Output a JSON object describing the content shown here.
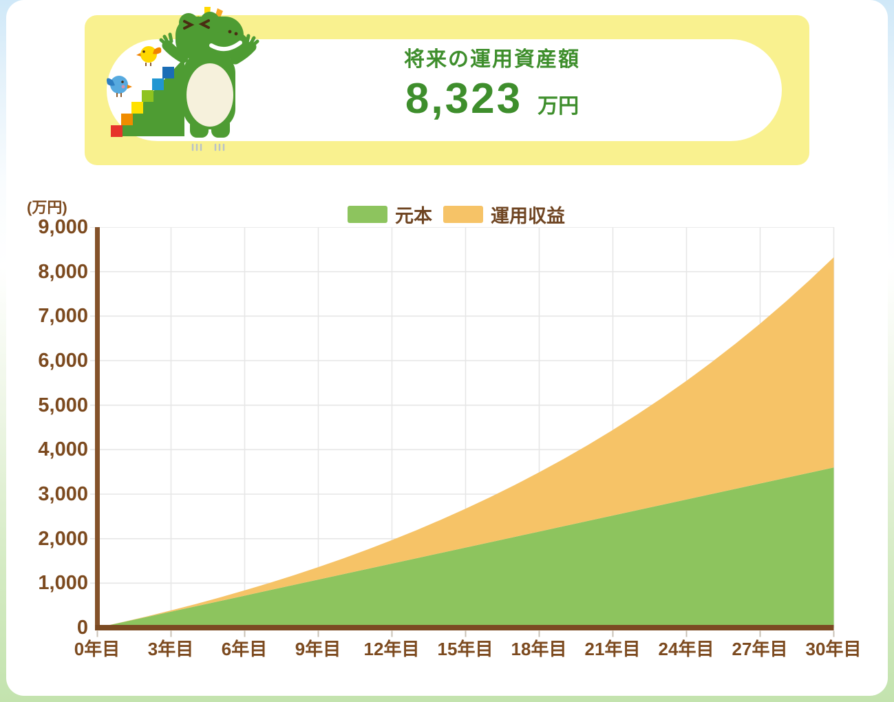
{
  "header": {
    "title": "将来の運用資産額",
    "value": "8,323",
    "unit": "万円",
    "mascot": "crocodile-climbing-rainbow-stairs-with-chick-and-bluebird"
  },
  "chart": {
    "axis_unit": "(万円)",
    "legend": [
      {
        "label": "元本",
        "color": "#8dc45e"
      },
      {
        "label": "運用収益",
        "color": "#f6c367"
      }
    ],
    "y_tick_labels": [
      "9,000",
      "8,000",
      "7,000",
      "6,000",
      "5,000",
      "4,000",
      "3,000",
      "2,000",
      "1,000",
      "0"
    ],
    "x_tick_labels": [
      "0年目",
      "3年目",
      "6年目",
      "9年目",
      "12年目",
      "15年目",
      "18年目",
      "21年目",
      "24年目",
      "27年目",
      "30年目"
    ]
  },
  "chart_data": {
    "type": "area",
    "stacked": true,
    "title": "将来の運用資産額 8,323万円",
    "xlabel": "年目",
    "ylabel": "万円",
    "ylim": [
      0,
      9000
    ],
    "xlim_years": [
      0,
      30
    ],
    "y_gridline_step": 1000,
    "x_gridline_step_years": 3,
    "grid": true,
    "legend_position": "top-center",
    "x_years": [
      0,
      1,
      2,
      3,
      4,
      5,
      6,
      7,
      8,
      9,
      10,
      11,
      12,
      13,
      14,
      15,
      16,
      17,
      18,
      19,
      20,
      21,
      22,
      23,
      24,
      25,
      26,
      27,
      28,
      29,
      30
    ],
    "series": [
      {
        "name": "元本",
        "color": "#8dc45e",
        "values": [
          0,
          120,
          240,
          360,
          480,
          600,
          720,
          840,
          960,
          1080,
          1200,
          1320,
          1440,
          1560,
          1680,
          1800,
          1920,
          2040,
          2160,
          2280,
          2400,
          2520,
          2640,
          2760,
          2880,
          3000,
          3120,
          3240,
          3360,
          3480,
          3600
        ]
      },
      {
        "name": "運用収益",
        "color": "#f6c367",
        "values": [
          0,
          3,
          12,
          28,
          50,
          80,
          118,
          163,
          217,
          280,
          353,
          435,
          528,
          631,
          746,
          873,
          1012,
          1165,
          1332,
          1513,
          1710,
          1923,
          2154,
          2402,
          2668,
          2955,
          3263,
          3592,
          3944,
          4321,
          4723
        ]
      }
    ],
    "stacked_totals": [
      0,
      123,
      252,
      388,
      530,
      680,
      838,
      1003,
      1177,
      1360,
      1553,
      1755,
      1968,
      2191,
      2426,
      2673,
      2932,
      3205,
      3492,
      3793,
      4110,
      4443,
      4794,
      5162,
      5548,
      5955,
      6383,
      6832,
      7304,
      7801,
      8323
    ],
    "final_total": 8323
  },
  "colors": {
    "card_yellow": "#f9f18f",
    "header_green": "#3e8e2c",
    "axis_brown": "#7b4a22",
    "label_brown": "#7c4a1f",
    "gridline": "#e6e6e6",
    "tick": "#c8c0b4",
    "area_green": "#8dc45e",
    "area_orange": "#f6c367"
  }
}
